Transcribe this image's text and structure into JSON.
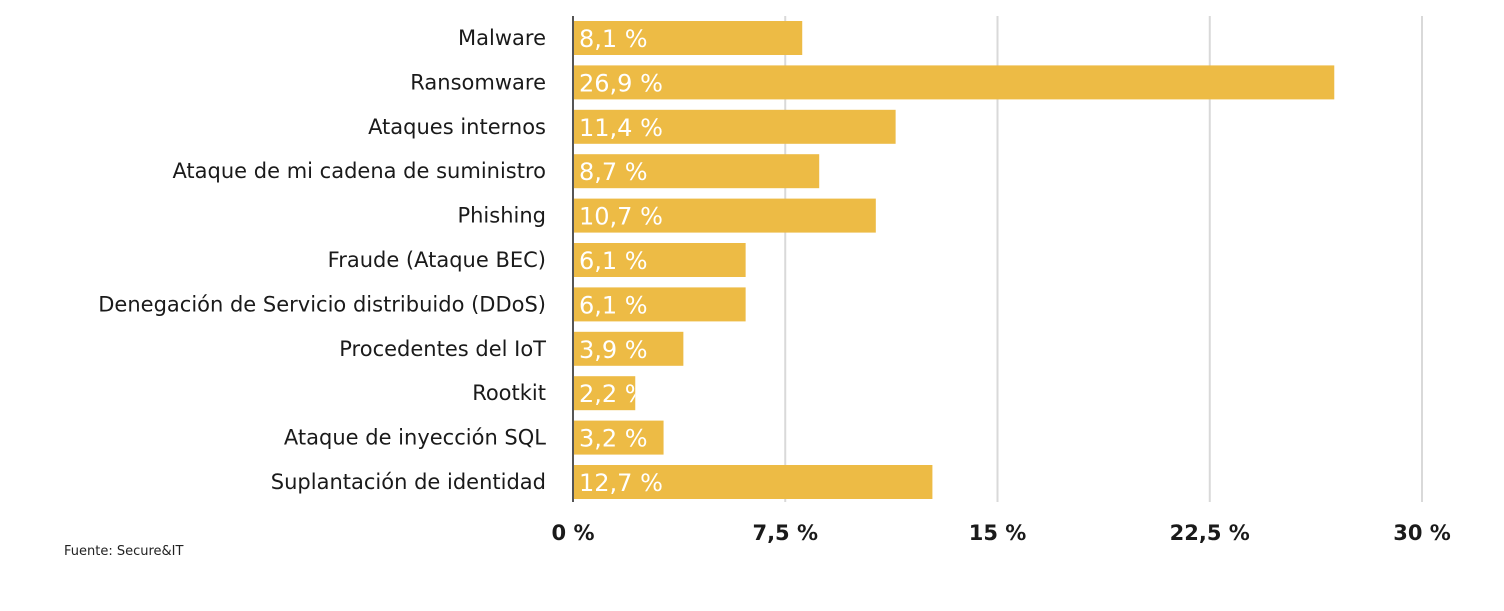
{
  "chart_data": {
    "type": "bar",
    "orientation": "horizontal",
    "categories": [
      "Malware",
      "Ransomware",
      "Ataques internos",
      "Ataque de mi cadena de suministro",
      "Phishing",
      "Fraude (Ataque BEC)",
      "Denegación de Servicio distribuido (DDoS)",
      "Procedentes del IoT",
      "Rootkit",
      "Ataque de inyección SQL",
      "Suplantación de identidad"
    ],
    "values": [
      8.1,
      26.9,
      11.4,
      8.7,
      10.7,
      6.1,
      6.1,
      3.9,
      2.2,
      3.2,
      12.7
    ],
    "value_labels": [
      "8,1 %",
      "26,9 %",
      "11,4 %",
      "8,7 %",
      "10,7 %",
      "6,1 %",
      "6,1 %",
      "3,9 %",
      "2,2 %",
      "3,2 %",
      "12,7 %"
    ],
    "xlim": [
      0,
      30
    ],
    "x_ticks": [
      0,
      7.5,
      15,
      22.5,
      30
    ],
    "x_tick_labels": [
      "0 %",
      "7,5 %",
      "15 %",
      "22,5 %",
      "30 %"
    ],
    "grid": true,
    "bar_color": "#EDBB45",
    "grid_color": "#d9d9d9",
    "axis_color": "#555555"
  },
  "source": "Fuente: Secure&IT"
}
